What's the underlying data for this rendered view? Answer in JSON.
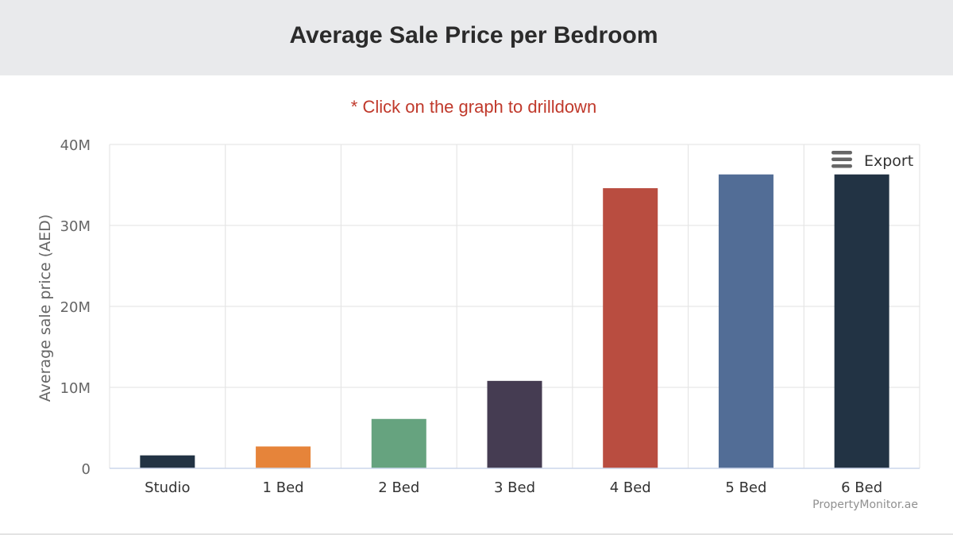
{
  "page": {
    "title": "Average Sale Price per Bedroom",
    "drilldown_note": "* Click on the graph to drilldown",
    "export_label": "Export",
    "credit": "PropertyMonitor.ae"
  },
  "colors": {
    "header_bg": "#e9eaec",
    "note_color": "#c0392b",
    "grid": "#e6e6e6",
    "axis": "#ccd6eb"
  },
  "icons": {
    "export": "hamburger-menu-icon"
  },
  "chart_data": {
    "type": "bar",
    "title": "Average Sale Price per Bedroom",
    "subtitle": "* Click on the graph to drilldown",
    "xlabel": "",
    "ylabel": "Average sale price (AED)",
    "ylim": [
      0,
      40000000
    ],
    "yticks": [
      0,
      10000000,
      20000000,
      30000000,
      40000000
    ],
    "ytick_labels": [
      "0",
      "10M",
      "20M",
      "30M",
      "40M"
    ],
    "categories": [
      "Studio",
      "1 Bed",
      "2 Bed",
      "3 Bed",
      "4 Bed",
      "5 Bed",
      "6 Bed"
    ],
    "values": [
      1600000,
      2700000,
      6100000,
      10800000,
      34600000,
      36300000,
      36300000
    ],
    "bar_colors": [
      "#223344",
      "#e6843a",
      "#66a37f",
      "#453c52",
      "#b94d40",
      "#526d96",
      "#223344"
    ],
    "grid": true,
    "legend": "none"
  }
}
